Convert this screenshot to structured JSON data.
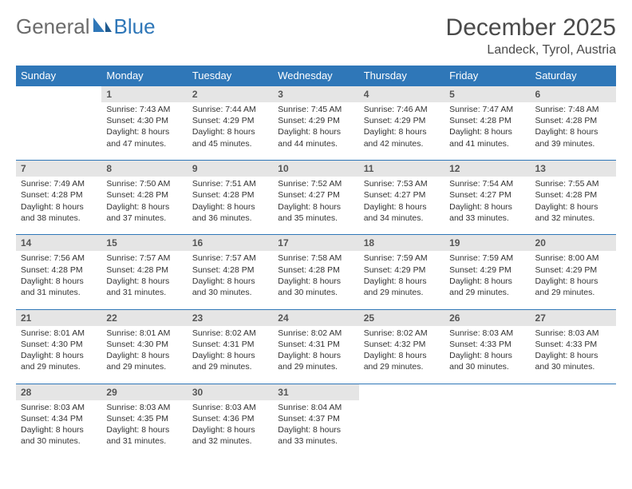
{
  "logo": {
    "part1": "General",
    "part2": "Blue"
  },
  "title": "December 2025",
  "location": "Landeck, Tyrol, Austria",
  "colors": {
    "header_bg": "#2f77b8",
    "header_text": "#ffffff",
    "daynum_bg": "#e5e5e5",
    "row_border": "#2f77b8",
    "logo_gray": "#6b6b6b",
    "logo_blue": "#2f77b8"
  },
  "weekdays": [
    "Sunday",
    "Monday",
    "Tuesday",
    "Wednesday",
    "Thursday",
    "Friday",
    "Saturday"
  ],
  "weeks": [
    [
      null,
      {
        "n": "1",
        "sr": "7:43 AM",
        "ss": "4:30 PM",
        "dh": "8",
        "dm": "47"
      },
      {
        "n": "2",
        "sr": "7:44 AM",
        "ss": "4:29 PM",
        "dh": "8",
        "dm": "45"
      },
      {
        "n": "3",
        "sr": "7:45 AM",
        "ss": "4:29 PM",
        "dh": "8",
        "dm": "44"
      },
      {
        "n": "4",
        "sr": "7:46 AM",
        "ss": "4:29 PM",
        "dh": "8",
        "dm": "42"
      },
      {
        "n": "5",
        "sr": "7:47 AM",
        "ss": "4:28 PM",
        "dh": "8",
        "dm": "41"
      },
      {
        "n": "6",
        "sr": "7:48 AM",
        "ss": "4:28 PM",
        "dh": "8",
        "dm": "39"
      }
    ],
    [
      {
        "n": "7",
        "sr": "7:49 AM",
        "ss": "4:28 PM",
        "dh": "8",
        "dm": "38"
      },
      {
        "n": "8",
        "sr": "7:50 AM",
        "ss": "4:28 PM",
        "dh": "8",
        "dm": "37"
      },
      {
        "n": "9",
        "sr": "7:51 AM",
        "ss": "4:28 PM",
        "dh": "8",
        "dm": "36"
      },
      {
        "n": "10",
        "sr": "7:52 AM",
        "ss": "4:27 PM",
        "dh": "8",
        "dm": "35"
      },
      {
        "n": "11",
        "sr": "7:53 AM",
        "ss": "4:27 PM",
        "dh": "8",
        "dm": "34"
      },
      {
        "n": "12",
        "sr": "7:54 AM",
        "ss": "4:27 PM",
        "dh": "8",
        "dm": "33"
      },
      {
        "n": "13",
        "sr": "7:55 AM",
        "ss": "4:28 PM",
        "dh": "8",
        "dm": "32"
      }
    ],
    [
      {
        "n": "14",
        "sr": "7:56 AM",
        "ss": "4:28 PM",
        "dh": "8",
        "dm": "31"
      },
      {
        "n": "15",
        "sr": "7:57 AM",
        "ss": "4:28 PM",
        "dh": "8",
        "dm": "31"
      },
      {
        "n": "16",
        "sr": "7:57 AM",
        "ss": "4:28 PM",
        "dh": "8",
        "dm": "30"
      },
      {
        "n": "17",
        "sr": "7:58 AM",
        "ss": "4:28 PM",
        "dh": "8",
        "dm": "30"
      },
      {
        "n": "18",
        "sr": "7:59 AM",
        "ss": "4:29 PM",
        "dh": "8",
        "dm": "29"
      },
      {
        "n": "19",
        "sr": "7:59 AM",
        "ss": "4:29 PM",
        "dh": "8",
        "dm": "29"
      },
      {
        "n": "20",
        "sr": "8:00 AM",
        "ss": "4:29 PM",
        "dh": "8",
        "dm": "29"
      }
    ],
    [
      {
        "n": "21",
        "sr": "8:01 AM",
        "ss": "4:30 PM",
        "dh": "8",
        "dm": "29"
      },
      {
        "n": "22",
        "sr": "8:01 AM",
        "ss": "4:30 PM",
        "dh": "8",
        "dm": "29"
      },
      {
        "n": "23",
        "sr": "8:02 AM",
        "ss": "4:31 PM",
        "dh": "8",
        "dm": "29"
      },
      {
        "n": "24",
        "sr": "8:02 AM",
        "ss": "4:31 PM",
        "dh": "8",
        "dm": "29"
      },
      {
        "n": "25",
        "sr": "8:02 AM",
        "ss": "4:32 PM",
        "dh": "8",
        "dm": "29"
      },
      {
        "n": "26",
        "sr": "8:03 AM",
        "ss": "4:33 PM",
        "dh": "8",
        "dm": "30"
      },
      {
        "n": "27",
        "sr": "8:03 AM",
        "ss": "4:33 PM",
        "dh": "8",
        "dm": "30"
      }
    ],
    [
      {
        "n": "28",
        "sr": "8:03 AM",
        "ss": "4:34 PM",
        "dh": "8",
        "dm": "30"
      },
      {
        "n": "29",
        "sr": "8:03 AM",
        "ss": "4:35 PM",
        "dh": "8",
        "dm": "31"
      },
      {
        "n": "30",
        "sr": "8:03 AM",
        "ss": "4:36 PM",
        "dh": "8",
        "dm": "32"
      },
      {
        "n": "31",
        "sr": "8:04 AM",
        "ss": "4:37 PM",
        "dh": "8",
        "dm": "33"
      },
      null,
      null,
      null
    ]
  ],
  "labels": {
    "sunrise": "Sunrise:",
    "sunset": "Sunset:",
    "daylight": "Daylight:",
    "hours": "hours",
    "and": "and",
    "minutes": "minutes."
  }
}
